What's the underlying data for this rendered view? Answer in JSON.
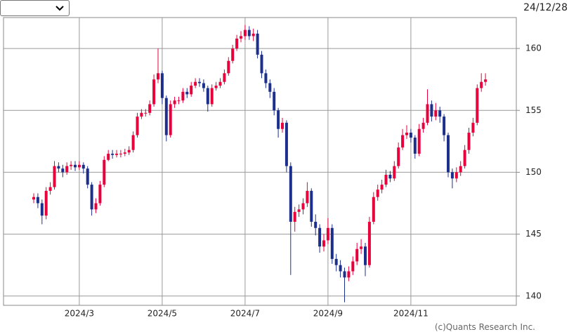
{
  "header": {
    "date": "24/12/28"
  },
  "footer": {
    "copyright": "(c)Quants Research Inc."
  },
  "chart_data": {
    "type": "candlestick",
    "categories": [
      null,
      null,
      null,
      null,
      null,
      null,
      null,
      null,
      null,
      null,
      null,
      "2024/3",
      null,
      null,
      null,
      null,
      null,
      null,
      null,
      null,
      null,
      null,
      null,
      null,
      null,
      null,
      null,
      null,
      null,
      null,
      null,
      "2024/5",
      null,
      null,
      null,
      null,
      null,
      null,
      null,
      null,
      null,
      null,
      null,
      null,
      null,
      null,
      null,
      null,
      null,
      null,
      null,
      "2024/7",
      null,
      null,
      null,
      null,
      null,
      null,
      null,
      null,
      null,
      null,
      null,
      null,
      null,
      null,
      null,
      null,
      null,
      null,
      null,
      "2024/9",
      null,
      null,
      null,
      null,
      null,
      null,
      null,
      null,
      null,
      null,
      null,
      null,
      null,
      null,
      null,
      null,
      null,
      null,
      null,
      "2024/11",
      null,
      null,
      null,
      null,
      null,
      null,
      null,
      null,
      null,
      null,
      null,
      null,
      null,
      null,
      null,
      null,
      null,
      null
    ],
    "open": [
      147.8,
      148.0,
      147.5,
      146.5,
      148.5,
      148.8,
      150.5,
      150.3,
      150.0,
      150.5,
      150.6,
      150.4,
      150.6,
      150.3,
      149.0,
      147.0,
      147.5,
      149.0,
      151.0,
      151.5,
      151.4,
      151.5,
      151.5,
      151.6,
      151.8,
      153.0,
      154.5,
      154.8,
      154.8,
      155.5,
      157.5,
      158.0,
      156.0,
      153.0,
      155.5,
      155.8,
      155.8,
      156.5,
      156.3,
      157.0,
      157.3,
      157.2,
      156.8,
      155.5,
      156.8,
      157.0,
      157.3,
      158.0,
      159.0,
      160.0,
      160.8,
      161.0,
      161.5,
      161.0,
      161.2,
      159.5,
      158.0,
      157.2,
      156.5,
      155.0,
      153.5,
      154.0,
      150.5,
      146.0,
      146.8,
      147.0,
      147.5,
      148.5,
      146.0,
      145.5,
      144.0,
      144.5,
      145.5,
      143.0,
      142.5,
      142.0,
      141.5,
      142.0,
      142.8,
      143.8,
      144.0,
      142.5,
      146.0,
      148.0,
      148.6,
      149.0,
      149.8,
      149.5,
      150.5,
      152.0,
      153.0,
      153.2,
      152.8,
      151.5,
      153.5,
      154.0,
      155.5,
      154.5,
      155.0,
      154.5,
      153.0,
      150.0,
      149.5,
      150.0,
      150.5,
      151.8,
      153.2,
      154.0,
      156.8,
      157.3
    ],
    "high": [
      148.3,
      148.3,
      147.8,
      148.8,
      149.2,
      150.9,
      150.8,
      150.6,
      150.8,
      150.9,
      150.9,
      150.9,
      150.8,
      150.5,
      149.2,
      147.9,
      149.3,
      151.3,
      151.8,
      151.8,
      151.8,
      151.8,
      151.9,
      152.1,
      153.3,
      154.8,
      155.1,
      155.1,
      155.8,
      157.9,
      160.0,
      158.2,
      156.2,
      155.8,
      156.1,
      156.1,
      156.8,
      156.8,
      157.3,
      157.6,
      157.6,
      157.5,
      157.0,
      157.1,
      157.3,
      157.6,
      158.3,
      159.3,
      160.3,
      161.1,
      161.4,
      161.9,
      161.8,
      161.6,
      161.5,
      159.8,
      158.3,
      157.5,
      156.8,
      155.2,
      154.4,
      154.2,
      150.8,
      147.2,
      147.4,
      147.9,
      149.2,
      148.7,
      146.6,
      145.8,
      145.0,
      146.3,
      145.8,
      143.4,
      142.9,
      142.3,
      142.4,
      143.2,
      144.3,
      144.6,
      144.3,
      146.4,
      148.4,
      149.0,
      149.4,
      150.2,
      150.1,
      150.9,
      152.4,
      153.5,
      153.8,
      153.5,
      153.0,
      153.9,
      154.4,
      156.7,
      155.8,
      155.6,
      155.3,
      154.7,
      153.2,
      150.3,
      150.4,
      150.9,
      152.2,
      153.6,
      154.4,
      157.1,
      158.0,
      158.0
    ],
    "low": [
      147.5,
      147.1,
      145.8,
      146.2,
      148.2,
      148.6,
      150.0,
      149.6,
      149.8,
      150.2,
      150.1,
      150.2,
      149.9,
      148.7,
      146.5,
      146.7,
      147.3,
      148.8,
      150.9,
      151.1,
      151.2,
      151.2,
      151.3,
      151.4,
      151.6,
      152.8,
      154.3,
      154.5,
      154.6,
      155.3,
      157.2,
      155.5,
      152.5,
      152.8,
      155.2,
      155.5,
      155.6,
      156.0,
      156.1,
      156.8,
      156.9,
      156.5,
      154.9,
      155.3,
      156.6,
      156.8,
      157.1,
      157.8,
      158.8,
      159.8,
      160.5,
      160.7,
      160.7,
      160.6,
      159.2,
      157.6,
      156.8,
      156.0,
      154.6,
      152.8,
      153.2,
      150.0,
      141.7,
      145.2,
      146.4,
      146.6,
      147.2,
      145.6,
      144.9,
      143.5,
      143.6,
      144.2,
      142.6,
      142.0,
      141.5,
      139.5,
      141.2,
      141.7,
      142.5,
      143.4,
      141.6,
      142.3,
      145.8,
      147.7,
      148.3,
      148.8,
      149.2,
      149.3,
      150.3,
      151.8,
      152.7,
      152.4,
      151.1,
      151.3,
      153.2,
      153.8,
      154.1,
      154.2,
      154.0,
      152.5,
      149.6,
      148.7,
      149.2,
      149.7,
      150.3,
      151.5,
      152.9,
      153.8,
      156.5,
      157.0
    ],
    "close": [
      148.0,
      147.5,
      146.5,
      148.5,
      148.8,
      150.5,
      150.3,
      150.0,
      150.5,
      150.6,
      150.4,
      150.6,
      150.3,
      149.0,
      147.0,
      147.5,
      149.0,
      151.0,
      151.5,
      151.4,
      151.5,
      151.5,
      151.6,
      151.8,
      153.0,
      154.5,
      154.8,
      154.8,
      155.5,
      157.5,
      158.0,
      156.0,
      153.0,
      155.5,
      155.8,
      155.8,
      156.5,
      156.3,
      157.0,
      157.3,
      157.2,
      156.8,
      155.5,
      156.8,
      157.0,
      157.3,
      158.0,
      159.0,
      160.0,
      160.8,
      161.0,
      161.5,
      161.0,
      161.2,
      159.5,
      158.0,
      157.2,
      156.5,
      155.0,
      153.5,
      154.0,
      150.5,
      146.0,
      146.8,
      147.0,
      147.5,
      148.5,
      146.0,
      145.5,
      144.0,
      144.5,
      145.5,
      143.0,
      142.5,
      142.0,
      141.5,
      142.0,
      142.8,
      143.8,
      144.0,
      142.5,
      146.0,
      148.0,
      148.6,
      149.0,
      149.8,
      149.5,
      150.5,
      152.0,
      153.0,
      153.2,
      152.8,
      151.5,
      153.5,
      154.0,
      155.5,
      154.5,
      155.0,
      154.5,
      153.0,
      150.0,
      149.5,
      150.0,
      150.5,
      151.8,
      153.2,
      154.0,
      156.8,
      157.3,
      157.5
    ],
    "up_color": "#e8003d",
    "down_color": "#1c2f8c",
    "ylim": [
      139.25,
      162.5
    ],
    "yticks": [
      140,
      145,
      150,
      155,
      160
    ],
    "grid": true
  }
}
